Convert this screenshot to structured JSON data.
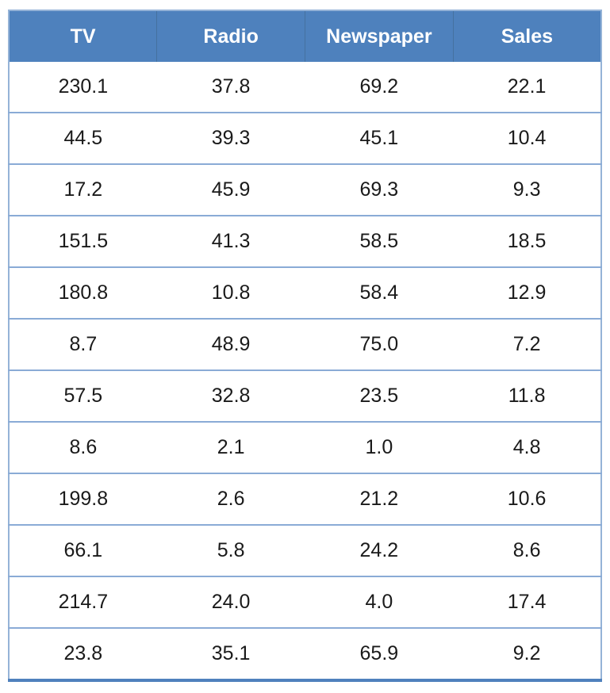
{
  "chart_data": {
    "type": "table",
    "title": "",
    "columns": [
      "TV",
      "Radio",
      "Newspaper",
      "Sales"
    ],
    "rows": [
      [
        "230.1",
        "37.8",
        "69.2",
        "22.1"
      ],
      [
        "44.5",
        "39.3",
        "45.1",
        "10.4"
      ],
      [
        "17.2",
        "45.9",
        "69.3",
        "9.3"
      ],
      [
        "151.5",
        "41.3",
        "58.5",
        "18.5"
      ],
      [
        "180.8",
        "10.8",
        "58.4",
        "12.9"
      ],
      [
        "8.7",
        "48.9",
        "75.0",
        "7.2"
      ],
      [
        "57.5",
        "32.8",
        "23.5",
        "11.8"
      ],
      [
        "8.6",
        "2.1",
        "1.0",
        "4.8"
      ],
      [
        "199.8",
        "2.6",
        "21.2",
        "10.6"
      ],
      [
        "66.1",
        "5.8",
        "24.2",
        "8.6"
      ],
      [
        "214.7",
        "24.0",
        "4.0",
        "17.4"
      ],
      [
        "23.8",
        "35.1",
        "65.9",
        "9.2"
      ]
    ],
    "colors": {
      "header_bg": "#4e81bd",
      "header_text": "#ffffff",
      "header_divider": "#44719f",
      "row_separator": "#8aabd6",
      "outer_border": "#95b3d7",
      "bottom_bar": "#4f81bd",
      "cell_text": "#1a1a1a"
    },
    "layout": {
      "grid": "horizontal-only",
      "column_count": 4,
      "row_count": 12
    }
  }
}
